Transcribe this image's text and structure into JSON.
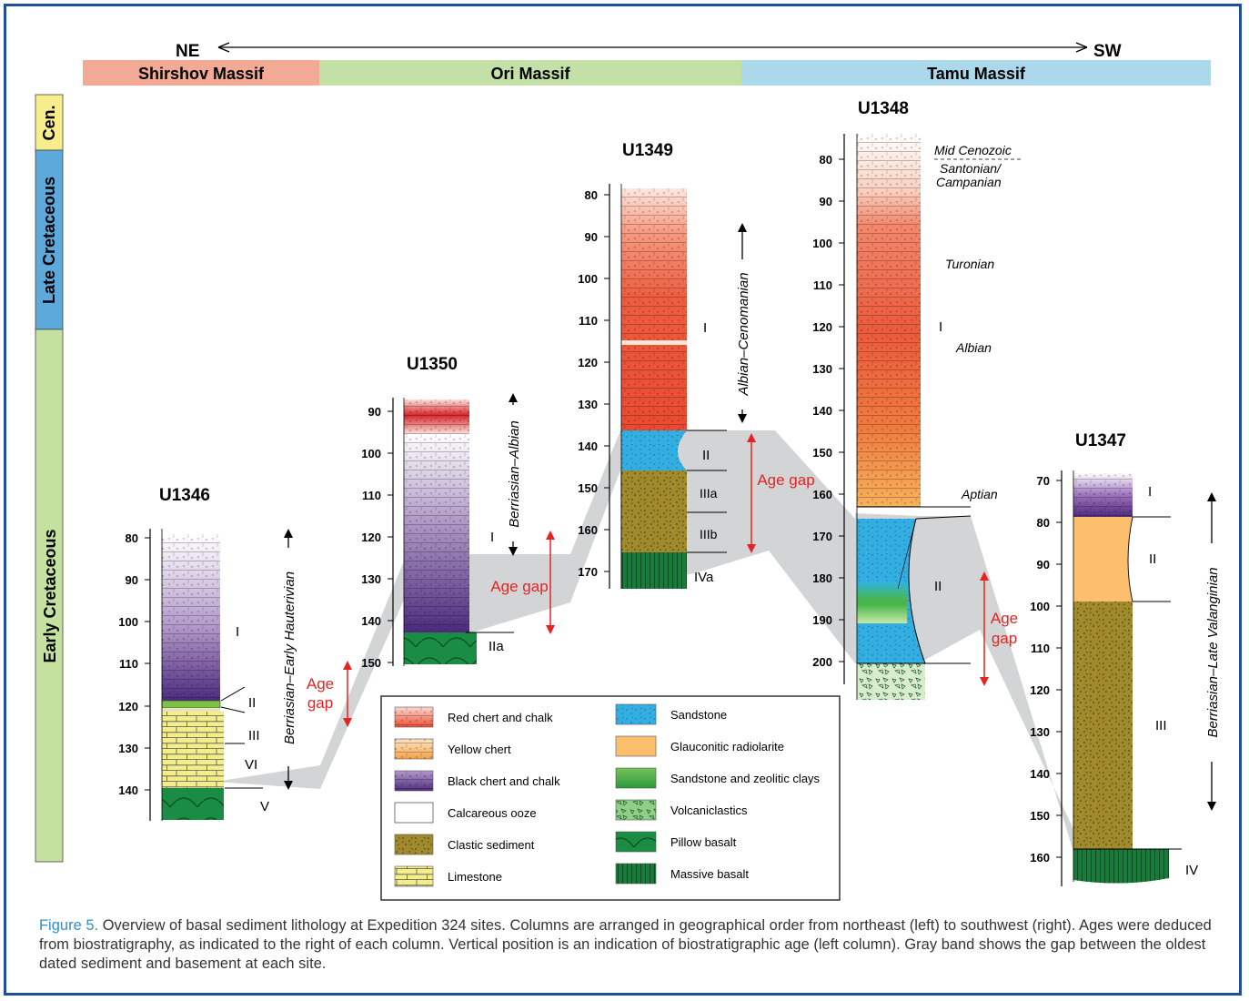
{
  "direction": {
    "left": "NE",
    "right": "SW"
  },
  "massifs": [
    {
      "label": "Shirshov Massif",
      "color": "#f3aa94"
    },
    {
      "label": "Ori Massif",
      "color": "#c3e1a6"
    },
    {
      "label": "Tamu Massif",
      "color": "#acd8ec"
    }
  ],
  "age_column": {
    "cenozoic": "Cen.",
    "late": "Late Cretaceous",
    "early": "Early Cretaceous"
  },
  "sites": {
    "u1346": {
      "name": "U1346",
      "ticks": [
        "80",
        "90",
        "100",
        "110",
        "120",
        "130",
        "140"
      ],
      "units": [
        "I",
        "II",
        "III",
        "VI",
        "V"
      ],
      "age": "Berriasian–Early Hauterivian"
    },
    "u1350": {
      "name": "U1350",
      "ticks": [
        "90",
        "100",
        "110",
        "120",
        "130",
        "140",
        "150"
      ],
      "units": [
        "I",
        "IIa"
      ],
      "age": "Berriasian–Albian"
    },
    "u1349": {
      "name": "U1349",
      "ticks": [
        "80",
        "90",
        "100",
        "110",
        "120",
        "130",
        "140",
        "150",
        "160",
        "170"
      ],
      "units": [
        "I",
        "II",
        "IIIa",
        "IIIb",
        "IVa"
      ],
      "age": "Albian–Cenomanian"
    },
    "u1348": {
      "name": "U1348",
      "ticks": [
        "80",
        "90",
        "100",
        "110",
        "120",
        "130",
        "140",
        "150",
        "160",
        "170",
        "180",
        "190",
        "200"
      ],
      "units": [
        "I",
        "II"
      ],
      "ages": [
        "Mid Cenozoic",
        "Santonian/",
        "Campanian",
        "Turonian",
        "Albian",
        "Aptian"
      ]
    },
    "u1347": {
      "name": "U1347",
      "ticks": [
        "70",
        "80",
        "90",
        "100",
        "110",
        "120",
        "130",
        "140",
        "150",
        "160"
      ],
      "units": [
        "I",
        "II",
        "III",
        "IV"
      ],
      "age": "Berriasian–Late Valanginian"
    }
  },
  "gap_labels": {
    "gap1_line1": "Age",
    "gap1_line2": "gap",
    "gap2": "Age gap",
    "gap3": "Age gap",
    "gap4_line1": "Age",
    "gap4_line2": "gap"
  },
  "legend": [
    {
      "label": "Red chert and chalk",
      "icon": "red-chert-swatch"
    },
    {
      "label": "Yellow chert",
      "icon": "yellow-chert-swatch"
    },
    {
      "label": "Black chert and chalk",
      "icon": "black-chert-swatch"
    },
    {
      "label": "Calcareous ooze",
      "icon": "calcareous-ooze-swatch"
    },
    {
      "label": "Clastic sediment",
      "icon": "clastic-sediment-swatch"
    },
    {
      "label": "Limestone",
      "icon": "limestone-swatch"
    },
    {
      "label": "Sandstone",
      "icon": "sandstone-swatch"
    },
    {
      "label": "Glauconitic radiolarite",
      "icon": "glauconitic-radiolarite-swatch"
    },
    {
      "label": "Sandstone and zeolitic clays",
      "icon": "sandstone-zeolitic-swatch"
    },
    {
      "label": "Volcaniclastics",
      "icon": "volcaniclastics-swatch"
    },
    {
      "label": "Pillow basalt",
      "icon": "pillow-basalt-swatch"
    },
    {
      "label": "Massive basalt",
      "icon": "massive-basalt-swatch"
    }
  ],
  "caption": {
    "label": "Figure 5.",
    "text": " Overview of basal sediment lithology at Expedition 324 sites. Columns are arranged in geographical order from northeast (left) to southwest (right). Ages were deduced from biostratigraphy, as indicated to the right of each column. Vertical position is an indication of biostratigraphic age (left column). Gray band shows the gap between the oldest dated sediment and basement at each site."
  },
  "colors": {
    "frame": "#1f4e9c",
    "gray_band": "#d3d4d6",
    "gap_red": "#e52421",
    "red_chert": "#ec5a3c",
    "yellow_chert": "#f7b561",
    "black_chert": "#6a3592",
    "sandstone": "#33aee3",
    "glauconitic": "#fbbf6e",
    "clastic": "#a08a2c",
    "limestone": "#f4ee8a",
    "basalt": "#1a8c43"
  }
}
